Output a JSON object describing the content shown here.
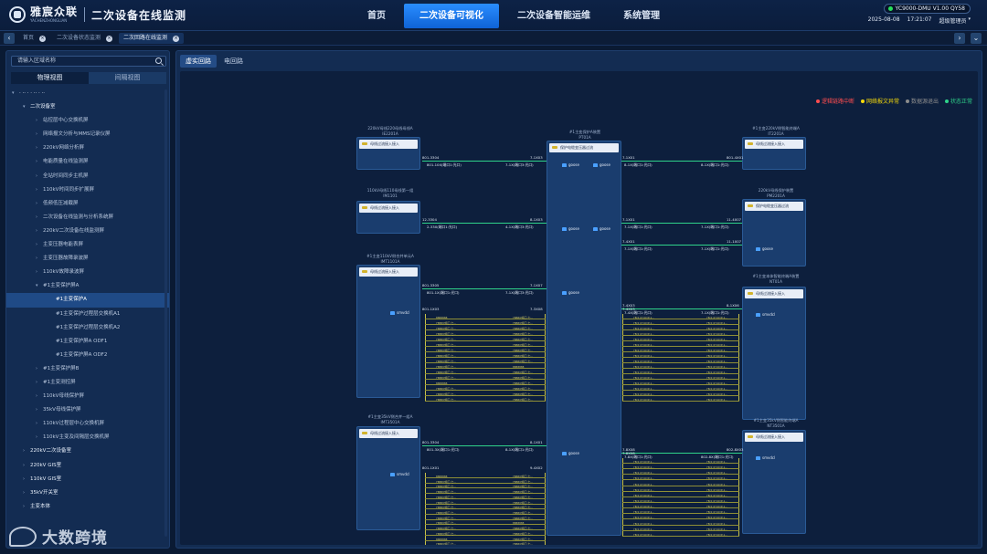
{
  "header": {
    "logo_cn": "雅宸众联",
    "logo_en": "YACHENZHONGLIAN",
    "system_title": "二次设备在线监测",
    "nav": [
      "首页",
      "二次设备可视化",
      "二次设备智能运维",
      "系统管理"
    ],
    "active_nav": 1,
    "device_badge": "YC9000-DMU V1.00 QY58",
    "date": "2025-08-08",
    "time": "17:21:07",
    "user": "超级管理员"
  },
  "tabs": [
    {
      "label": "首页"
    },
    {
      "label": "二次设备状态监测"
    },
    {
      "label": "二次回路在线监测"
    }
  ],
  "sidebar": {
    "search_placeholder": "请输入区域名称",
    "view_tabs": [
      "物理视图",
      "间隔视图"
    ],
    "tree": [
      {
        "label": "· ·· · · ·· · ··",
        "level": 0,
        "expanded": true
      },
      {
        "label": "二次设备室",
        "level": 1,
        "expanded": true
      },
      {
        "label": "站控层中心交换机屏",
        "level": 2
      },
      {
        "label": "网络报文分析与MMS记录仪屏",
        "level": 2
      },
      {
        "label": "220kV网络分析屏",
        "level": 2
      },
      {
        "label": "电能质量在线监测屏",
        "level": 2
      },
      {
        "label": "全站时间同步主机屏",
        "level": 2
      },
      {
        "label": "110kV时间同步扩展屏",
        "level": 2
      },
      {
        "label": "低频低压减载屏",
        "level": 2
      },
      {
        "label": "二次设备在线监测与分析系统屏",
        "level": 2
      },
      {
        "label": "220kV二次设备在线监测屏",
        "level": 2
      },
      {
        "label": "主变压器电能表屏",
        "level": 2
      },
      {
        "label": "主变压器故障录波屏",
        "level": 2
      },
      {
        "label": "110kV故障录波屏",
        "level": 2
      },
      {
        "label": "#1主变保护屏A",
        "level": 2,
        "expanded": true
      },
      {
        "label": "#1主变保护A",
        "level": 3,
        "selected": true
      },
      {
        "label": "#1主变保护过程层交换机A1",
        "level": 3
      },
      {
        "label": "#1主变保护过程层交换机A2",
        "level": 3
      },
      {
        "label": "#1主变保护屏A ODF1",
        "level": 3
      },
      {
        "label": "#1主变保护屏A ODF2",
        "level": 3
      },
      {
        "label": "#1主变保护屏B",
        "level": 2
      },
      {
        "label": "#1主变测控屏",
        "level": 2
      },
      {
        "label": "110kV母线保护屏",
        "level": 2
      },
      {
        "label": "35kV母线保护屏",
        "level": 2
      },
      {
        "label": "110kV过程层中心交换机屏",
        "level": 2
      },
      {
        "label": "110kV主变及间隔层交换机屏",
        "level": 2
      },
      {
        "label": "220kV二次设备室",
        "level": 1
      },
      {
        "label": "220kV GIS室",
        "level": 1
      },
      {
        "label": "110kV GIS室",
        "level": 1
      },
      {
        "label": "35kV开关室",
        "level": 1
      },
      {
        "label": "主变本体",
        "level": 1
      }
    ]
  },
  "main": {
    "sub_tabs": [
      "虚实回路",
      "电回路"
    ],
    "active_sub_tab": 0,
    "legend": [
      {
        "label": "逻辑链路中断",
        "color": "#ff4d4f"
      },
      {
        "label": "网络报文异常",
        "color": "#f5d90a"
      },
      {
        "label": "数据源退出",
        "color": "#8c8c8c"
      },
      {
        "label": "状态正常",
        "color": "#2fd38a"
      }
    ],
    "center_device": {
      "title1": "#1主变保护A装置",
      "title2": "PT01A",
      "head": "保护电缆变压器过流",
      "ports": [
        "goose",
        "goose",
        "goose",
        "goose",
        "goose",
        "goose"
      ]
    },
    "left_devices": [
      {
        "title1": "220kV母线220母线母线A",
        "title2": "IE2201A",
        "head": "母线过流接入接入",
        "port_l": "801-3304",
        "port_r": "7-1X03",
        "link": "801-10X(端口1:光口)",
        "link_r": "7-1X(端口3:光口)"
      },
      {
        "title1": "110kV母线110母线第一组",
        "title2": "IM1101",
        "head": "母线过流接入接入",
        "port_l": "12-3304",
        "port_r": "8-1X03",
        "link": "2-33X(端口1:光口)",
        "link_r": "4-1X(端口3:光口)"
      },
      {
        "title1": "#1主变110kV侧合并单元A",
        "title2": "IMT1101A",
        "head": "母线过流接入接入",
        "port_l": "801-3305",
        "port_r": "7-1X07",
        "port2_l": "801-1X03",
        "port2_r": "7-3X08",
        "node": "smvdcl",
        "link": "801-1X(端口1:光口)",
        "link_r": "7-1X(端口3:光口)"
      },
      {
        "title1": "#1主变35kV侧合并一组A",
        "title2": "IMT3501A",
        "head": "母线过流接入接入",
        "port_l": "801-3304",
        "port_r": "8-1X01",
        "port2_l": "801-1X01",
        "port2_r": "9-4X02",
        "node": "smvdcl",
        "link": "801-3X(端口1:光口)",
        "link_r": "8-1X(端口1:光口)"
      }
    ],
    "right_devices": [
      {
        "title1": "#1主变220kV侧智能终端A",
        "title2": "IT2201A",
        "head": "母线过流接入接入",
        "port_l": "7-1X01",
        "port_r": "801-4X01",
        "link": "8-1X(端口1:光口)",
        "link_r": "8-1X(端口1:光口)"
      },
      {
        "title1": "220kV母线保护装置",
        "title2": "PM2201A",
        "head": "保护电缆变压器过流",
        "port_l": "7-1X01",
        "port_r": "11-4X07",
        "port2_l": "7-4X01",
        "port2_r": "11-1X07",
        "node": "goose",
        "link": "7-1X(端口1:光口)",
        "link_r": "7-1X(端口1:光口)"
      },
      {
        "title1": "#1主变本体智能终端A装置",
        "title2": "NT01A",
        "head": "母线过流接入接入",
        "port_l": "7-4X03",
        "port_r": "8-1X06",
        "node": "smvdcl",
        "link": "7-4X(端口1:光口)",
        "link_r": "7-1X(端口1:光口)"
      },
      {
        "title1": "#1主变35kV侧智能终端A",
        "title2": "NT3501A",
        "head": "母线过流接入接入",
        "port_l": "7-8X08",
        "port_r": "802-8X03",
        "node": "smvdcl",
        "link": "7-8X(端口1:光口)",
        "link_r": "802-8X(端口1:光口)"
      }
    ],
    "bundle_labels_left": [
      "8888888",
      "YB88(P端口 七...",
      "YB88(P端口 七...",
      "YB88(P端口 七...",
      "YB88(P端口 七...",
      "YB88(P端口 七...",
      "YB88(P端口 七...",
      "YB88(P端口 七...",
      "YB88(P端口 七...",
      "YB88(P端口 七...",
      "YB88(P端口 七...",
      "YB88(P端口 七..."
    ],
    "bundle_labels_right": [
      "YB(1)1Y4X(P-1...",
      "YB(1)1Y4X(P-1...",
      "YB(1)1Y4X(P-1...",
      "YB(1)1Y4X(P-1...",
      "YB(1)1Y4X(P-1...",
      "YB(1)1Y4X(P-1...",
      "YB(1)1Y4X(P-1...",
      "YB(1)1Y4X(P-1...",
      "YB(1)1Y4X(P-1...",
      "YB(1)1Y4X(P-1...",
      "YB(1)1Y4X(P-1...",
      "YB(1)1Y4X(P-1..."
    ]
  },
  "watermark": "大数跨境"
}
